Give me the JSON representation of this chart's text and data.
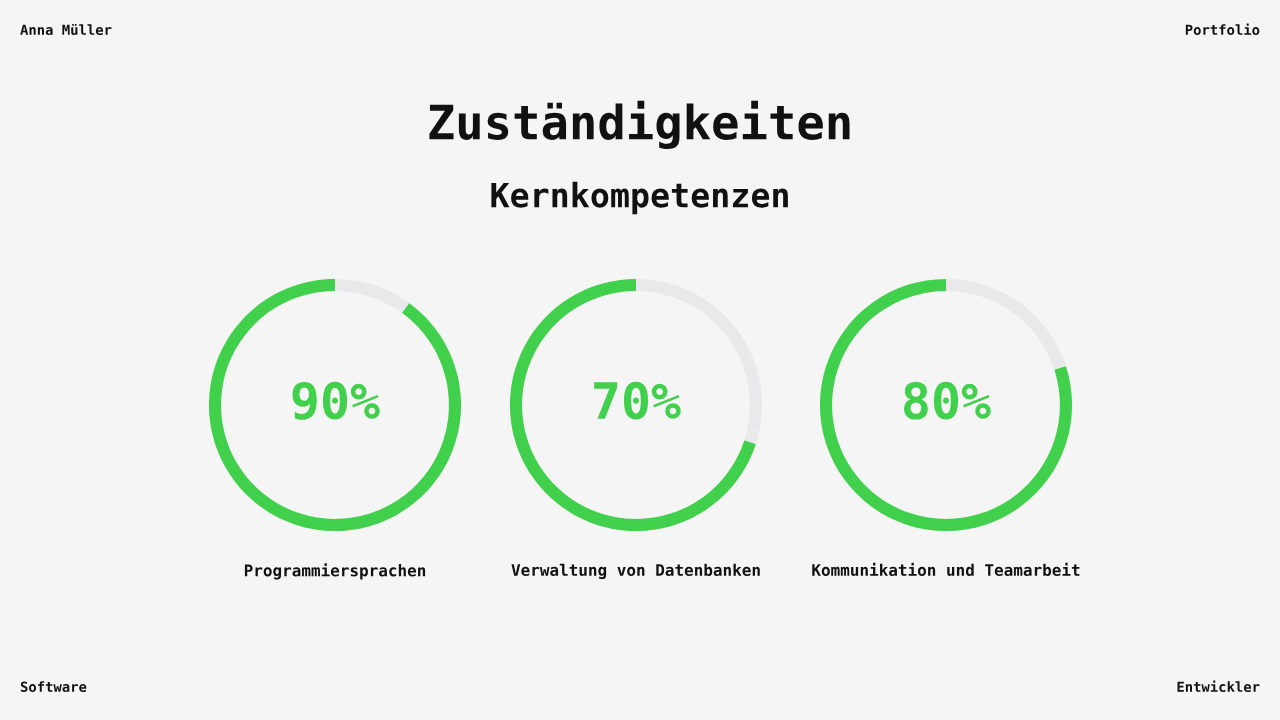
{
  "chart_data": [
    {
      "type": "other",
      "title": "Zuständigkeiten",
      "subtitle": "Kernkompetenzen",
      "annotations": [
        "Anna Müller",
        "Portfolio",
        "Software",
        "Entwickler"
      ]
    },
    {
      "type": "donut",
      "categories": [
        "Programmiersprachen",
        null
      ],
      "values": [
        90,
        10
      ],
      "colors": [
        "#41d04b",
        "#e9e8ea"
      ],
      "annotations": [
        "90%"
      ]
    },
    {
      "type": "donut",
      "categories": [
        "Verwaltung von Datenbanken",
        null
      ],
      "values": [
        70,
        30
      ],
      "colors": [
        "#41d04b",
        "#e9e8ea"
      ],
      "annotations": [
        "70%"
      ]
    },
    {
      "type": "donut",
      "categories": [
        "Kommunikation und Teamarbeit",
        null
      ],
      "values": [
        80,
        20
      ],
      "colors": [
        "#41d04b",
        "#e9e8ea"
      ],
      "annotations": [
        "80%"
      ]
    }
  ]
}
